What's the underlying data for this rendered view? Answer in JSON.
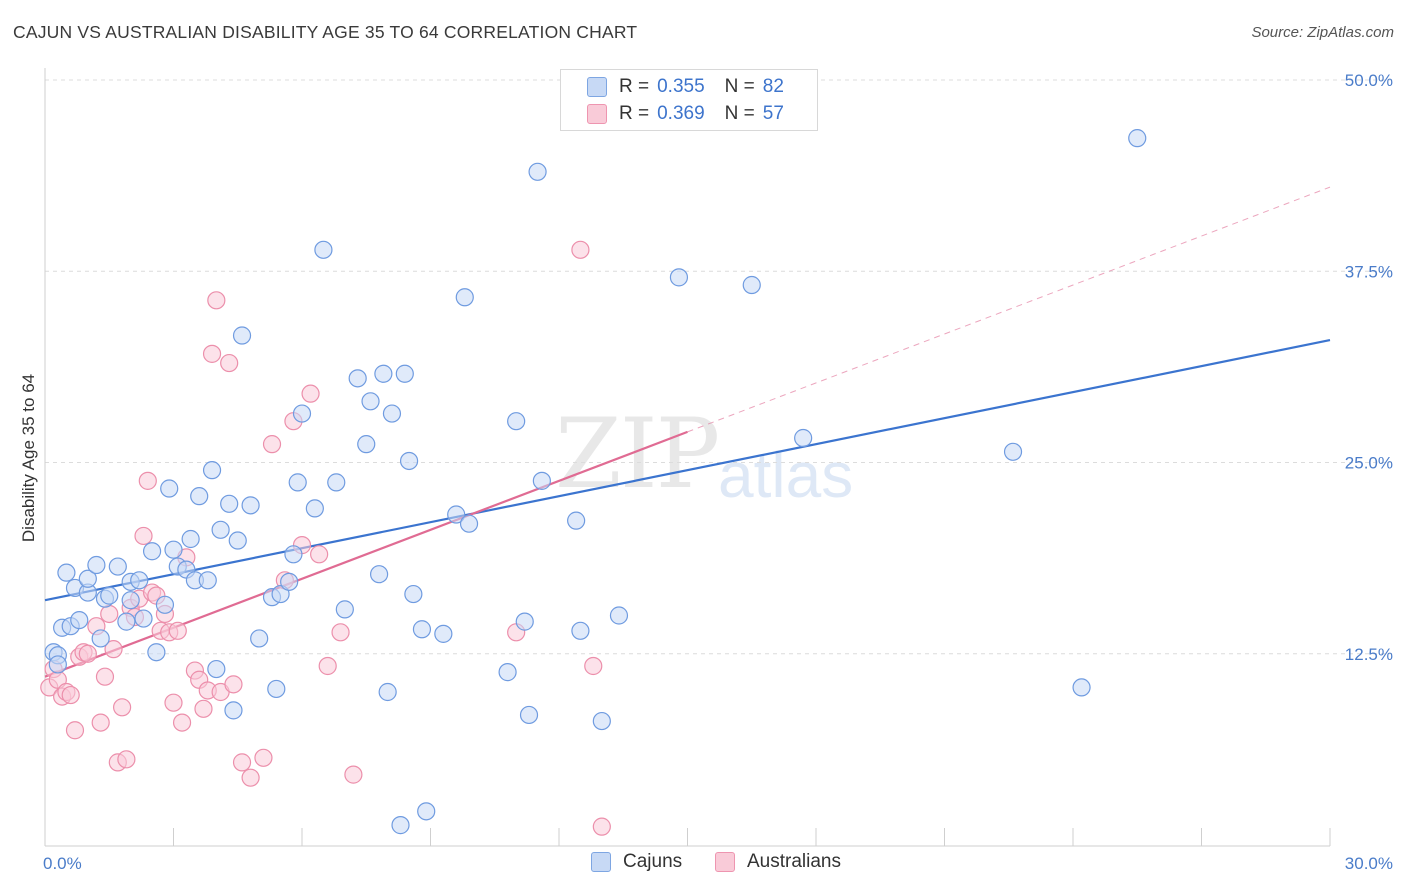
{
  "title": "CAJUN VS AUSTRALIAN DISABILITY AGE 35 TO 64 CORRELATION CHART",
  "source": "Source: ZipAtlas.com",
  "watermark": {
    "zip": "ZIP",
    "atlas": "atlas"
  },
  "legend_top": [
    {
      "r_label": "R =",
      "r_value": "0.355",
      "n_label": "N =",
      "n_value": "82",
      "fill": "#c7d9f5",
      "stroke": "#7ea6e2"
    },
    {
      "r_label": "R =",
      "r_value": "0.369",
      "n_label": "N =",
      "n_value": "57",
      "fill": "#f9cbd8",
      "stroke": "#ee95b0"
    }
  ],
  "legend_bottom": [
    {
      "label": "Cajuns",
      "fill": "#c7d9f5",
      "stroke": "#7ea6e2"
    },
    {
      "label": "Australians",
      "fill": "#f9cbd8",
      "stroke": "#ee95b0"
    }
  ],
  "chart_data": {
    "type": "scatter",
    "ylabel": "Disability Age 35 to 64",
    "x_tick_labels": [
      "0.0%",
      "30.0%"
    ],
    "y_tick_labels": [
      "12.5%",
      "25.0%",
      "37.5%",
      "50.0%"
    ],
    "xlim": [
      0,
      30
    ],
    "ylim": [
      0,
      50
    ],
    "grid": true,
    "legend_position": "top-center",
    "colors": {
      "cajuns_fill": "#c7d9f5",
      "cajuns_stroke": "#6f9be0",
      "cajuns_line": "#3b74cf",
      "australians_fill": "#f9cbd8",
      "australians_stroke": "#ec8fab",
      "australians_line": "#e06b93"
    },
    "series": [
      {
        "name": "Cajuns",
        "trend": {
          "x": [
            0,
            30
          ],
          "y": [
            16.0,
            33.0
          ]
        },
        "points": [
          [
            0.2,
            12.6
          ],
          [
            0.3,
            12.4
          ],
          [
            0.3,
            11.8
          ],
          [
            0.4,
            14.2
          ],
          [
            0.5,
            17.8
          ],
          [
            0.6,
            14.3
          ],
          [
            0.7,
            16.8
          ],
          [
            0.8,
            14.7
          ],
          [
            1.0,
            16.5
          ],
          [
            1.0,
            17.4
          ],
          [
            1.2,
            18.3
          ],
          [
            1.3,
            13.5
          ],
          [
            1.4,
            16.1
          ],
          [
            1.5,
            16.3
          ],
          [
            1.7,
            18.2
          ],
          [
            1.9,
            14.6
          ],
          [
            2.0,
            17.2
          ],
          [
            2.0,
            16.0
          ],
          [
            2.2,
            17.3
          ],
          [
            2.3,
            14.8
          ],
          [
            2.5,
            19.2
          ],
          [
            2.6,
            12.6
          ],
          [
            2.8,
            15.7
          ],
          [
            2.9,
            23.3
          ],
          [
            3.0,
            19.3
          ],
          [
            3.1,
            18.2
          ],
          [
            3.3,
            18.0
          ],
          [
            3.4,
            20.0
          ],
          [
            3.5,
            17.3
          ],
          [
            3.6,
            22.8
          ],
          [
            3.8,
            17.3
          ],
          [
            3.9,
            24.5
          ],
          [
            4.0,
            11.5
          ],
          [
            4.1,
            20.6
          ],
          [
            4.3,
            22.3
          ],
          [
            4.4,
            8.8
          ],
          [
            4.5,
            19.9
          ],
          [
            4.6,
            33.3
          ],
          [
            4.8,
            22.2
          ],
          [
            5.0,
            13.5
          ],
          [
            5.3,
            16.2
          ],
          [
            5.4,
            10.2
          ],
          [
            5.5,
            16.4
          ],
          [
            5.7,
            17.2
          ],
          [
            5.8,
            19.0
          ],
          [
            5.9,
            23.7
          ],
          [
            6.0,
            28.2
          ],
          [
            6.3,
            22.0
          ],
          [
            6.5,
            38.9
          ],
          [
            6.8,
            23.7
          ],
          [
            7.0,
            15.4
          ],
          [
            7.3,
            30.5
          ],
          [
            7.5,
            26.2
          ],
          [
            7.6,
            29.0
          ],
          [
            7.9,
            30.8
          ],
          [
            7.8,
            17.7
          ],
          [
            8.0,
            10.0
          ],
          [
            8.1,
            28.2
          ],
          [
            8.3,
            1.3
          ],
          [
            8.4,
            30.8
          ],
          [
            8.5,
            25.1
          ],
          [
            8.6,
            16.4
          ],
          [
            8.8,
            14.1
          ],
          [
            8.9,
            2.2
          ],
          [
            9.3,
            13.8
          ],
          [
            9.6,
            21.6
          ],
          [
            9.8,
            35.8
          ],
          [
            9.9,
            21.0
          ],
          [
            10.8,
            11.3
          ],
          [
            11.0,
            27.7
          ],
          [
            11.2,
            14.6
          ],
          [
            11.3,
            8.5
          ],
          [
            11.6,
            23.8
          ],
          [
            11.5,
            44.0
          ],
          [
            12.4,
            21.2
          ],
          [
            12.5,
            14.0
          ],
          [
            13.0,
            8.1
          ],
          [
            13.4,
            15.0
          ],
          [
            14.8,
            37.1
          ],
          [
            16.5,
            36.6
          ],
          [
            17.7,
            26.6
          ],
          [
            22.6,
            25.7
          ],
          [
            24.2,
            10.3
          ],
          [
            25.5,
            46.2
          ]
        ]
      },
      {
        "name": "Australians",
        "trend": {
          "x": [
            0,
            15
          ],
          "y": [
            11.0,
            27.0
          ]
        },
        "trend_extended": {
          "x": [
            15,
            30
          ],
          "y": [
            27.0,
            43.0
          ]
        },
        "points": [
          [
            0.1,
            10.3
          ],
          [
            0.2,
            11.5
          ],
          [
            0.3,
            10.8
          ],
          [
            0.4,
            9.7
          ],
          [
            0.5,
            10.0
          ],
          [
            0.6,
            9.8
          ],
          [
            0.7,
            7.5
          ],
          [
            0.8,
            12.3
          ],
          [
            0.9,
            12.6
          ],
          [
            1.0,
            12.5
          ],
          [
            1.2,
            14.3
          ],
          [
            1.3,
            8.0
          ],
          [
            1.4,
            11.0
          ],
          [
            1.5,
            15.1
          ],
          [
            1.6,
            12.8
          ],
          [
            1.7,
            5.4
          ],
          [
            1.8,
            9.0
          ],
          [
            1.9,
            5.6
          ],
          [
            2.0,
            15.5
          ],
          [
            2.1,
            14.9
          ],
          [
            2.2,
            16.1
          ],
          [
            2.3,
            20.2
          ],
          [
            2.4,
            23.8
          ],
          [
            2.5,
            16.5
          ],
          [
            2.6,
            16.3
          ],
          [
            2.7,
            14.0
          ],
          [
            2.8,
            15.1
          ],
          [
            2.9,
            13.9
          ],
          [
            3.0,
            9.3
          ],
          [
            3.1,
            14.0
          ],
          [
            3.2,
            8.0
          ],
          [
            3.3,
            18.8
          ],
          [
            3.5,
            11.4
          ],
          [
            3.6,
            10.8
          ],
          [
            3.7,
            8.9
          ],
          [
            3.8,
            10.1
          ],
          [
            3.9,
            32.1
          ],
          [
            4.0,
            35.6
          ],
          [
            4.1,
            10.0
          ],
          [
            4.3,
            31.5
          ],
          [
            4.4,
            10.5
          ],
          [
            4.6,
            5.4
          ],
          [
            4.8,
            4.4
          ],
          [
            5.1,
            5.7
          ],
          [
            5.3,
            26.2
          ],
          [
            5.6,
            17.3
          ],
          [
            5.8,
            27.7
          ],
          [
            6.0,
            19.6
          ],
          [
            6.2,
            29.5
          ],
          [
            6.4,
            19.0
          ],
          [
            6.6,
            11.7
          ],
          [
            6.9,
            13.9
          ],
          [
            7.2,
            4.6
          ],
          [
            12.5,
            38.9
          ],
          [
            12.8,
            11.7
          ],
          [
            13.0,
            1.2
          ],
          [
            11.0,
            13.9
          ]
        ]
      }
    ]
  }
}
